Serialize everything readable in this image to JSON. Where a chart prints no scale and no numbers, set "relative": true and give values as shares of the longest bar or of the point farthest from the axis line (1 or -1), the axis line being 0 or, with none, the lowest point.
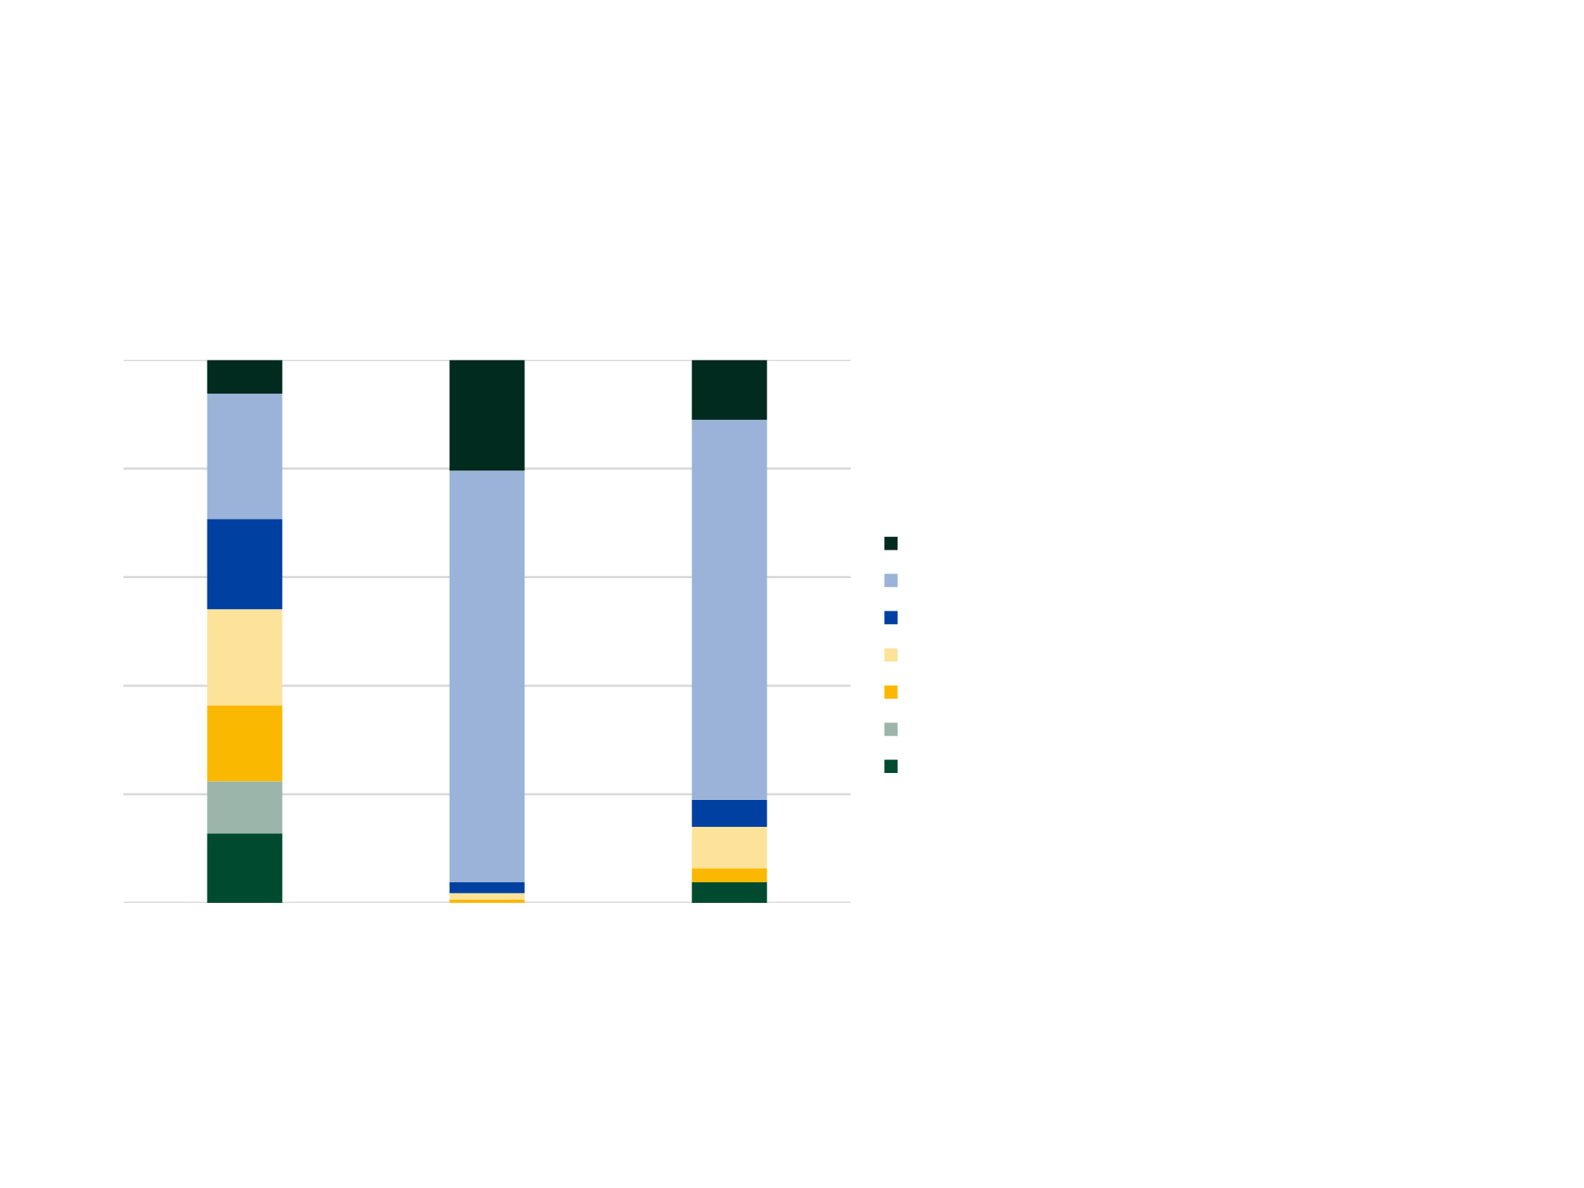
{
  "chart_data": {
    "type": "bar",
    "stacked": true,
    "relative": true,
    "grid": "y",
    "categories": [
      null,
      null,
      null
    ],
    "series": [
      {
        "color": "#004b30",
        "values": [
          0.128,
          0,
          0.038
        ]
      },
      {
        "color": "#9cb5aa",
        "values": [
          0.096,
          0,
          0
        ]
      },
      {
        "color": "#fbb800",
        "values": [
          0.14,
          0.006,
          0.026
        ]
      },
      {
        "color": "#fde29a",
        "values": [
          0.177,
          0.012,
          0.076
        ]
      },
      {
        "color": "#0040a0",
        "values": [
          0.166,
          0.02,
          0.05
        ]
      },
      {
        "color": "#9bb3d9",
        "values": [
          0.231,
          0.758,
          0.7
        ]
      },
      {
        "color": "#002b1e",
        "values": [
          0.062,
          0.204,
          0.11
        ]
      }
    ]
  }
}
